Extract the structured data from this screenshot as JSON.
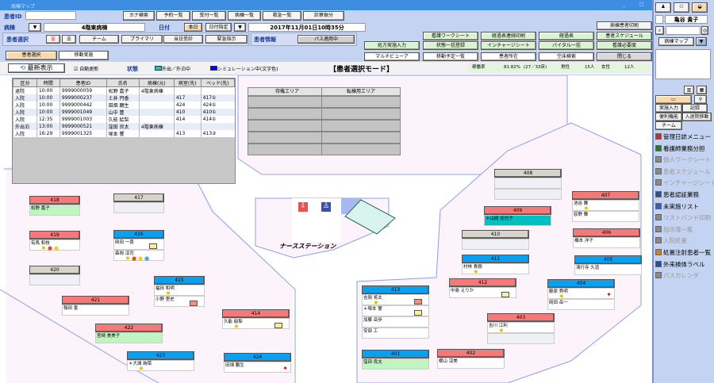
{
  "window": {
    "title": "病棟マップ",
    "controls": [
      "_",
      "□",
      "X"
    ]
  },
  "toolbar": {
    "patient_id_label": "患者ID",
    "patient_id_value": "",
    "buttons": [
      "カナ検索",
      "予約一覧",
      "受付一覧",
      "病棟一覧",
      "救急一覧",
      "診察振分"
    ]
  },
  "ward": {
    "label": "病棟",
    "value": "4階東病棟",
    "date_label": "日付",
    "today": "本日",
    "date_select": "日付指定",
    "datetime": "2017年11月01日10時35分"
  },
  "patient_select": {
    "label": "患者選択",
    "buttons": [
      "チーム",
      "プライマリ",
      "当日受診",
      "緊急指示"
    ]
  },
  "patient_info": {
    "label": "患者情報",
    "path_button": "パス適用中"
  },
  "actions": {
    "print": "病棟患者印刷",
    "row1": [
      "看護ワークシート",
      "経過表連続印刷",
      "経過表",
      "患者スケジュール"
    ],
    "row2": [
      "処方実施入力",
      "状態一括登録",
      "インチャージシート",
      "バイタル一括",
      "看護必要度"
    ],
    "row3": [
      "マルチビューア",
      "移動予定一覧",
      "患者所在",
      "空床検索",
      "閉じる"
    ]
  },
  "mode_tabs": [
    "患者選択",
    "移動実施"
  ],
  "status_bar": {
    "refresh": "最新表示",
    "auto_update": "自動更新",
    "auto_update_checked": true,
    "state_label": "状態",
    "legend": [
      {
        "label": "外出／外泊中",
        "color": "#20c0c0"
      },
      {
        "label": "シミュレーション中(文字色)",
        "color": "#0000e0"
      }
    ],
    "mode": "【患者選択モード】",
    "occupancy_label": "稼働率",
    "occupancy": "81.82%",
    "beds": "(27／33床)",
    "male_label": "男性",
    "male": "15人",
    "female_label": "女性",
    "female": "12人"
  },
  "movement_table": {
    "headers": [
      "区分",
      "時間",
      "患者ID",
      "氏名",
      "病棟(元)",
      "病室(先)",
      "ベッド(先)"
    ],
    "rows": [
      [
        "退院",
        "10:00",
        "9999000059",
        "松野 嘉子",
        "4階東病棟",
        "",
        ""
      ],
      [
        "入院",
        "10:00",
        "9999000237",
        "土井 円香",
        "",
        "417",
        "417①"
      ],
      [
        "入院",
        "10:00",
        "9999000442",
        "田畑 鵬生",
        "",
        "424",
        "424①"
      ],
      [
        "入院",
        "10:00",
        "9999001049",
        "山中 豊",
        "",
        "410",
        "410①"
      ],
      [
        "入院",
        "12:35",
        "9999001003",
        "久能 絵梨",
        "",
        "414",
        "414①"
      ],
      [
        "外出泊",
        "13:00",
        "9999000521",
        "窪田 良太",
        "4階東病棟",
        "",
        ""
      ],
      [
        "入院",
        "16:29",
        "9999001325",
        "塚本 響",
        "",
        "413",
        "413②"
      ]
    ]
  },
  "areas": [
    {
      "label": "待機エリア"
    },
    {
      "label": "転棟用エリア"
    }
  ],
  "nurse_station": "ナースステーション",
  "colors": {
    "room_female": "#f47a7a",
    "room_male": "#0aa0f0",
    "room_empty": "#d8d4cc",
    "bed_green": "#c0f4c0",
    "bed_teal": "#00c0c0"
  },
  "rooms": [
    {
      "no": "418",
      "type": "female",
      "beds": [
        {
          "name": "松野 嘉子",
          "bg": "green"
        }
      ]
    },
    {
      "no": "417",
      "type": "empty",
      "beds": [
        {
          "name": ""
        }
      ]
    },
    {
      "no": "419",
      "type": "female",
      "beds": [
        {
          "name": "有馬 和枝",
          "icons": [
            "bulb",
            "alert-red",
            "alert-yellow"
          ]
        }
      ]
    },
    {
      "no": "416",
      "type": "male",
      "beds": [
        {
          "name": "岡田 一喜",
          "icons": [
            "yellow-box"
          ]
        },
        {
          "name": "森岡 淳司",
          "icons": [
            "bulb",
            "alert-red",
            "alert-yellow",
            "alert-blue"
          ]
        }
      ]
    },
    {
      "no": "420",
      "type": "empty",
      "beds": [
        {
          "name": ""
        }
      ]
    },
    {
      "no": "415",
      "type": "male",
      "beds": [
        {
          "name": "福田 和明",
          "icons": [
            "bulb"
          ]
        },
        {
          "name": "小野 里史",
          "icons": [
            "salmon-box"
          ]
        }
      ]
    },
    {
      "no": "421",
      "type": "female",
      "beds": [
        {
          "name": "稲田 香"
        }
      ]
    },
    {
      "no": "414",
      "type": "female",
      "beds": [
        {
          "name": "久能 絵梨",
          "icons": [
            "bulb",
            "yellow-box"
          ]
        }
      ]
    },
    {
      "no": "422",
      "type": "female",
      "beds": [
        {
          "name": "宮崎 美美子",
          "bg": "green"
        }
      ]
    },
    {
      "no": "423",
      "type": "male",
      "beds": [
        {
          "name": "＊大城 絢菜",
          "icons": [
            "bulb"
          ]
        }
      ]
    },
    {
      "no": "424",
      "type": "male",
      "beds": [
        {
          "name": "田畑 鵬生",
          "icons": [
            "red-star"
          ]
        }
      ]
    },
    {
      "no": "408",
      "type": "empty",
      "beds": [
        {
          "name": ""
        },
        {
          "name": ""
        }
      ]
    },
    {
      "no": "407",
      "type": "female",
      "beds": [
        {
          "name": "池谷 舞",
          "icons": [
            "bulb"
          ]
        },
        {
          "name": "荻野 舞"
        }
      ]
    },
    {
      "no": "409",
      "type": "female",
      "beds": [
        {
          "name": "＊山岡 佳代子",
          "bg": "teal"
        }
      ]
    },
    {
      "no": "410",
      "type": "empty",
      "beds": [
        {
          "name": ""
        }
      ]
    },
    {
      "no": "406",
      "type": "female",
      "beds": [
        {
          "name": "橋本 洋子"
        }
      ]
    },
    {
      "no": "411",
      "type": "male",
      "beds": [
        {
          "name": "村林 貴樹",
          "icons": [
            "bulb"
          ]
        }
      ]
    },
    {
      "no": "405",
      "type": "male",
      "beds": [
        {
          "name": "清行寺 久道"
        }
      ]
    },
    {
      "no": "412",
      "type": "female",
      "beds": [
        {
          "name": "中島 えりか",
          "icons": [
            "yellow-box"
          ]
        }
      ]
    },
    {
      "no": "404",
      "type": "male",
      "beds": [
        {
          "name": "藤原 秀明",
          "icons": [
            "bulb",
            "red-star"
          ]
        },
        {
          "name": "岡田 岳一"
        }
      ]
    },
    {
      "no": "413",
      "type": "male",
      "beds": [
        {
          "name": "吉岡 将太",
          "icons": [
            "bulb",
            "salmon-box"
          ]
        },
        {
          "name": "＊塚本 響",
          "icons": [
            "yellow-box"
          ]
        },
        {
          "name": "加藤 岳歩"
        },
        {
          "name": "安部 工"
        }
      ]
    },
    {
      "no": "403",
      "type": "female",
      "beds": [
        {
          "name": "吉川 江利",
          "icons": [
            "bulb"
          ]
        },
        {
          "name": ""
        }
      ]
    },
    {
      "no": "401",
      "type": "male",
      "beds": [
        {
          "name": "窪田 良太",
          "bg": "green"
        }
      ]
    },
    {
      "no": "402",
      "type": "female",
      "beds": [
        {
          "name": "横山 淳美"
        }
      ]
    }
  ],
  "sidebar": {
    "user": "亀谷 貴子",
    "map_select": "病棟マップ",
    "tabs": [
      "実施入力",
      "記録",
      "便利機能",
      "入退院移動",
      "チーム"
    ],
    "menu": [
      {
        "label": "管理日誌メニュー",
        "enabled": true
      },
      {
        "label": "看護師業務分担",
        "enabled": true
      },
      {
        "label": "個人ワークシート",
        "enabled": false
      },
      {
        "label": "患者スケジュール",
        "enabled": false
      },
      {
        "label": "インチャージシート",
        "enabled": false
      },
      {
        "label": "患者認証業務",
        "enabled": true
      },
      {
        "label": "未実施リスト",
        "enabled": true
      },
      {
        "label": "リストバンド印刷",
        "enabled": false
      },
      {
        "label": "指示簿一覧",
        "enabled": false
      },
      {
        "label": "入院処置",
        "enabled": false
      },
      {
        "label": "処置注射患者一覧",
        "enabled": true
      },
      {
        "label": "外来検体ラベル",
        "enabled": true
      },
      {
        "label": "パスカレンダ",
        "enabled": false
      }
    ]
  }
}
